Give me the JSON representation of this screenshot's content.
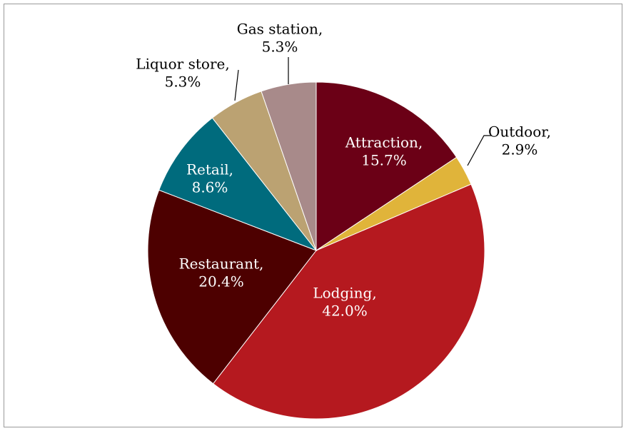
{
  "chart_data": {
    "type": "pie",
    "categories": [
      "Attraction,",
      "Outdoor,",
      "Lodging,",
      "Restaurant,",
      "Retail,",
      "Liquor store,",
      "Gas station,"
    ],
    "values": [
      15.7,
      2.9,
      42.0,
      20.4,
      8.6,
      5.3,
      5.3
    ],
    "value_labels": [
      "15.7%",
      "2.9%",
      "42.0%",
      "20.4%",
      "8.6%",
      "5.3%",
      "5.3%"
    ],
    "colors": [
      "#6b0016",
      "#e0b43a",
      "#b5191f",
      "#4d0000",
      "#006b7d",
      "#bba272",
      "#a88a8a"
    ]
  }
}
